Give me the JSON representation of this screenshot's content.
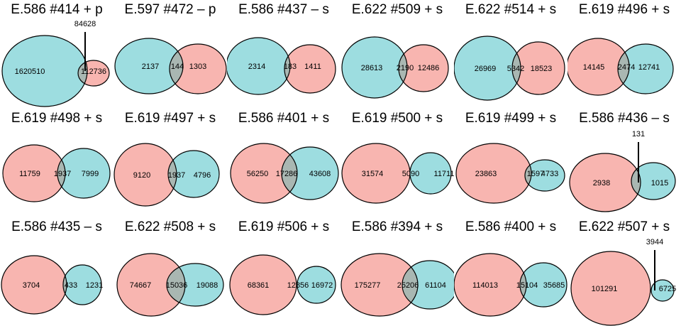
{
  "colors": {
    "pink": "#F8B5B0",
    "teal": "#9DDDE0",
    "overlap": "#A9B7B2",
    "stroke": "#000000"
  },
  "panels": [
    {
      "title": "E.586 #414 + p",
      "left": "1620510",
      "overlap": "84628",
      "right": "112736",
      "left_color": "teal",
      "right_color": "pink",
      "callout": "overlap"
    },
    {
      "title": "E.597 #472 – p",
      "left": "2137",
      "overlap": "144",
      "right": "1303",
      "left_color": "teal",
      "right_color": "pink"
    },
    {
      "title": "E.586 #437 – s",
      "left": "2314",
      "overlap": "183",
      "right": "1411",
      "left_color": "teal",
      "right_color": "pink"
    },
    {
      "title": "E.622 #509 + s",
      "left": "28613",
      "overlap": "2190",
      "right": "12486",
      "left_color": "teal",
      "right_color": "pink"
    },
    {
      "title": "E.622 #514 + s",
      "left": "26969",
      "overlap": "5342",
      "right": "18523",
      "left_color": "teal",
      "right_color": "pink"
    },
    {
      "title": "E.619 #496 + s",
      "left": "14145",
      "overlap": "2474",
      "right": "12741",
      "left_color": "pink",
      "right_color": "teal"
    },
    {
      "title": "E.619 #498 + s",
      "left": "11759",
      "overlap": "1937",
      "right": "7999",
      "left_color": "pink",
      "right_color": "teal"
    },
    {
      "title": "E.619 #497 + s",
      "left": "9120",
      "overlap": "1937",
      "right": "4796",
      "left_color": "pink",
      "right_color": "teal"
    },
    {
      "title": "E.586 #401 + s",
      "left": "56250",
      "overlap": "17286",
      "right": "43608",
      "left_color": "pink",
      "right_color": "teal"
    },
    {
      "title": "E.619 #500 + s",
      "left": "31574",
      "overlap": "5090",
      "right": "11711",
      "left_color": "pink",
      "right_color": "teal"
    },
    {
      "title": "E.619 #499 + s",
      "left": "23863",
      "overlap": "1597",
      "right": "4733",
      "left_color": "pink",
      "right_color": "teal"
    },
    {
      "title": "E.586 #436 – s",
      "left": "2938",
      "overlap": "131",
      "right": "1015",
      "left_color": "pink",
      "right_color": "teal",
      "callout": "overlap"
    },
    {
      "title": "E.586 #435 – s",
      "left": "3704",
      "overlap": "433",
      "right": "1231",
      "left_color": "pink",
      "right_color": "teal"
    },
    {
      "title": "E.622 #508 + s",
      "left": "74667",
      "overlap": "15036",
      "right": "19088",
      "left_color": "pink",
      "right_color": "teal"
    },
    {
      "title": "E.619 #506 + s",
      "left": "68361",
      "overlap": "12856",
      "right": "16972",
      "left_color": "pink",
      "right_color": "teal"
    },
    {
      "title": "E.586 #394 + s",
      "left": "175277",
      "overlap": "25206",
      "right": "61104",
      "left_color": "pink",
      "right_color": "teal"
    },
    {
      "title": "E.586 #400 + s",
      "left": "114013",
      "overlap": "15104",
      "right": "35685",
      "left_color": "pink",
      "right_color": "teal"
    },
    {
      "title": "E.622 #507 + s",
      "left": "101291",
      "overlap": "3944",
      "right": "6725",
      "left_color": "pink",
      "right_color": "teal",
      "callout": "overlap"
    }
  ]
}
